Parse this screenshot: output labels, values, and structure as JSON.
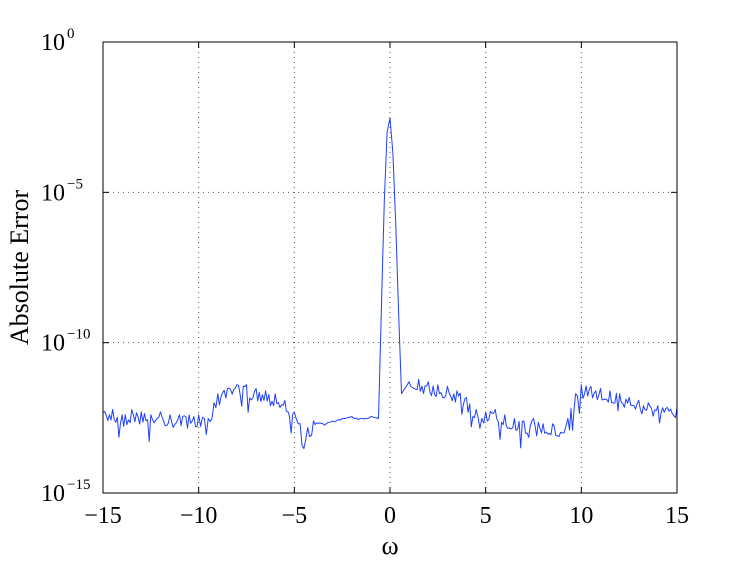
{
  "chart_data": {
    "type": "line",
    "xlabel": "ω",
    "ylabel": "Absolute Error",
    "xlim": [
      -15,
      15
    ],
    "ylim": [
      1e-15,
      1
    ],
    "yscale": "log",
    "grid": true,
    "x_ticks": [
      {
        "value": -15,
        "label": "−15"
      },
      {
        "value": -10,
        "label": "−10"
      },
      {
        "value": -5,
        "label": "−5"
      },
      {
        "value": 0,
        "label": "0"
      },
      {
        "value": 5,
        "label": "5"
      },
      {
        "value": 10,
        "label": "10"
      },
      {
        "value": 15,
        "label": "15"
      }
    ],
    "y_ticks": [
      {
        "value": 1e-15,
        "base": "10",
        "exp": "−15"
      },
      {
        "value": 1e-10,
        "base": "10",
        "exp": "−10"
      },
      {
        "value": 1e-05,
        "base": "10",
        "exp": "−5"
      },
      {
        "value": 1,
        "base": "10",
        "exp": "0"
      }
    ],
    "series": [
      {
        "color": "#1f3fff",
        "x": [
          -15.0,
          -14.5,
          -14.0,
          -13.5,
          -13.0,
          -12.5,
          -12.0,
          -11.5,
          -11.0,
          -10.5,
          -10.0,
          -9.7,
          -9.5,
          -9.2,
          -9.0,
          -8.5,
          -8.0,
          -7.5,
          -7.0,
          -6.5,
          -6.0,
          -5.5,
          -5.0,
          -4.7,
          -4.5,
          -4.3,
          -4.0,
          -3.5,
          -3.0,
          -2.5,
          -2.0,
          -1.5,
          -1.0,
          -0.6,
          -0.3,
          -0.15,
          0.0,
          0.15,
          0.3,
          0.45,
          0.6,
          1.0,
          1.5,
          2.0,
          2.5,
          3.0,
          3.5,
          4.0,
          4.5,
          4.8,
          5.0,
          5.5,
          6.0,
          6.5,
          7.0,
          7.5,
          8.0,
          8.5,
          9.0,
          9.3,
          9.7,
          10.0,
          10.5,
          11.0,
          11.5,
          12.0,
          12.5,
          13.0,
          13.5,
          14.0,
          14.5,
          15.0
        ],
        "y": [
          5e-13,
          6e-13,
          4e-13,
          6e-13,
          5e-13,
          4e-13,
          5e-13,
          4e-13,
          4e-13,
          4e-13,
          4e-13,
          3e-13,
          3e-13,
          1e-12,
          2e-12,
          3e-12,
          4e-12,
          4e-12,
          3e-12,
          2.5e-12,
          2e-12,
          1.2e-12,
          5e-13,
          2e-13,
          3e-14,
          1.5e-13,
          2.5e-13,
          2e-13,
          2.5e-13,
          3e-13,
          3.5e-13,
          3e-13,
          3.5e-13,
          3e-13,
          5e-06,
          0.001,
          0.003,
          0.0002,
          1e-06,
          1e-09,
          2e-12,
          5e-12,
          6e-12,
          5e-12,
          4e-12,
          3.5e-12,
          2.5e-12,
          1.5e-12,
          6e-13,
          3e-13,
          5e-13,
          6e-13,
          4e-13,
          3e-13,
          2.5e-13,
          3e-13,
          2e-13,
          2e-13,
          1e-13,
          3e-13,
          2e-12,
          4e-12,
          3.5e-12,
          3e-12,
          2.5e-12,
          2e-12,
          1.5e-12,
          1.2e-12,
          1e-12,
          8e-13,
          7e-13,
          7e-13
        ]
      }
    ]
  }
}
